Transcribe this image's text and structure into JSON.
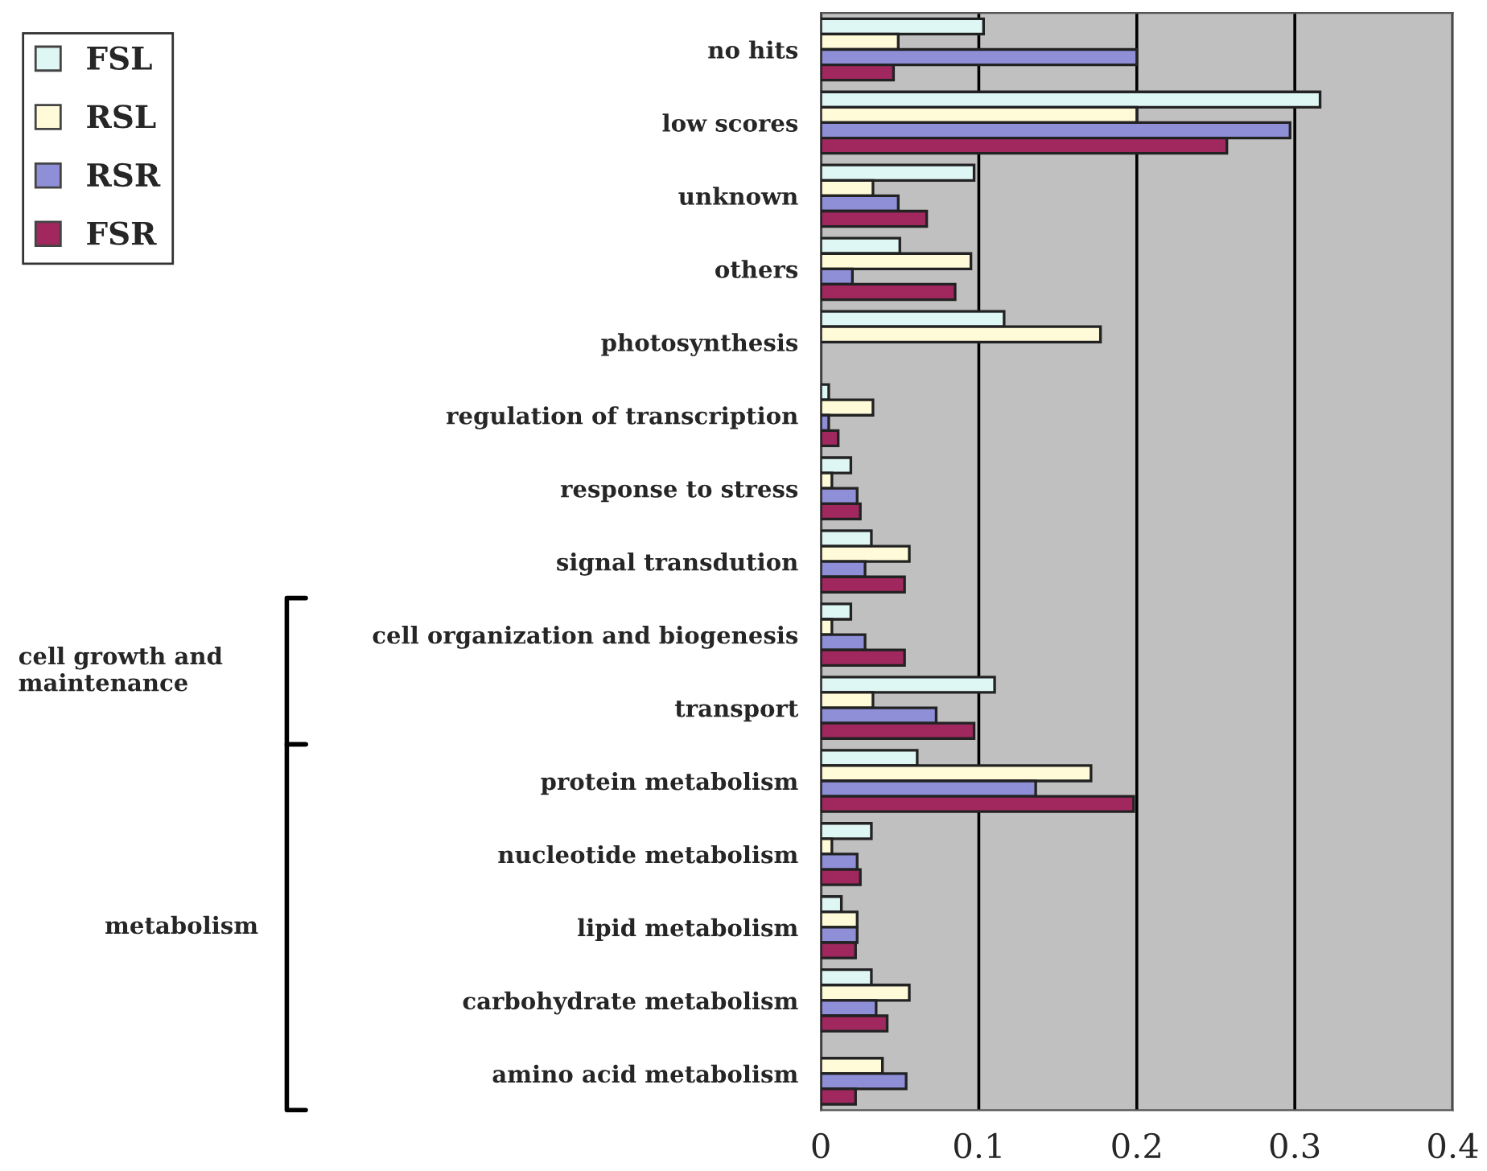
{
  "chart_data": {
    "type": "bar",
    "orientation": "horizontal",
    "categories": [
      "no hits",
      "low scores",
      "unknown",
      "others",
      "photosynthesis",
      "regulation of transcription",
      "response to stress",
      "signal transdution",
      "cell organization and biogenesis",
      "transport",
      "protein metabolism",
      "nucleotide metabolism",
      "lipid metabolism",
      "carbohydrate metabolism",
      "amino acid metabolism"
    ],
    "series": [
      {
        "name": "FSL",
        "color": "#dff7f4",
        "values": [
          0.103,
          0.316,
          0.097,
          0.05,
          0.116,
          0.005,
          0.019,
          0.032,
          0.019,
          0.11,
          0.061,
          0.032,
          0.013,
          0.032,
          0
        ]
      },
      {
        "name": "RSL",
        "color": "#fffbd8",
        "values": [
          0.049,
          0.2,
          0.033,
          0.095,
          0.177,
          0.033,
          0.007,
          0.056,
          0.007,
          0.033,
          0.171,
          0.007,
          0.023,
          0.056,
          0.039
        ]
      },
      {
        "name": "RSR",
        "color": "#8f8fd8",
        "values": [
          0.2,
          0.297,
          0.049,
          0.02,
          0,
          0.005,
          0.023,
          0.028,
          0.028,
          0.073,
          0.136,
          0.023,
          0.023,
          0.035,
          0.054
        ]
      },
      {
        "name": "FSR",
        "color": "#a0285f",
        "values": [
          0.046,
          0.257,
          0.067,
          0.085,
          0,
          0.011,
          0.025,
          0.053,
          0.053,
          0.097,
          0.198,
          0.025,
          0.022,
          0.042,
          0.022
        ]
      }
    ],
    "xlim": [
      0,
      0.4
    ],
    "xticks": [
      0,
      0.1,
      0.2,
      0.3,
      0.4
    ],
    "grid": "x",
    "legend": "top left",
    "annotations": [
      "cell growth and maintenance",
      "metabolism"
    ]
  }
}
